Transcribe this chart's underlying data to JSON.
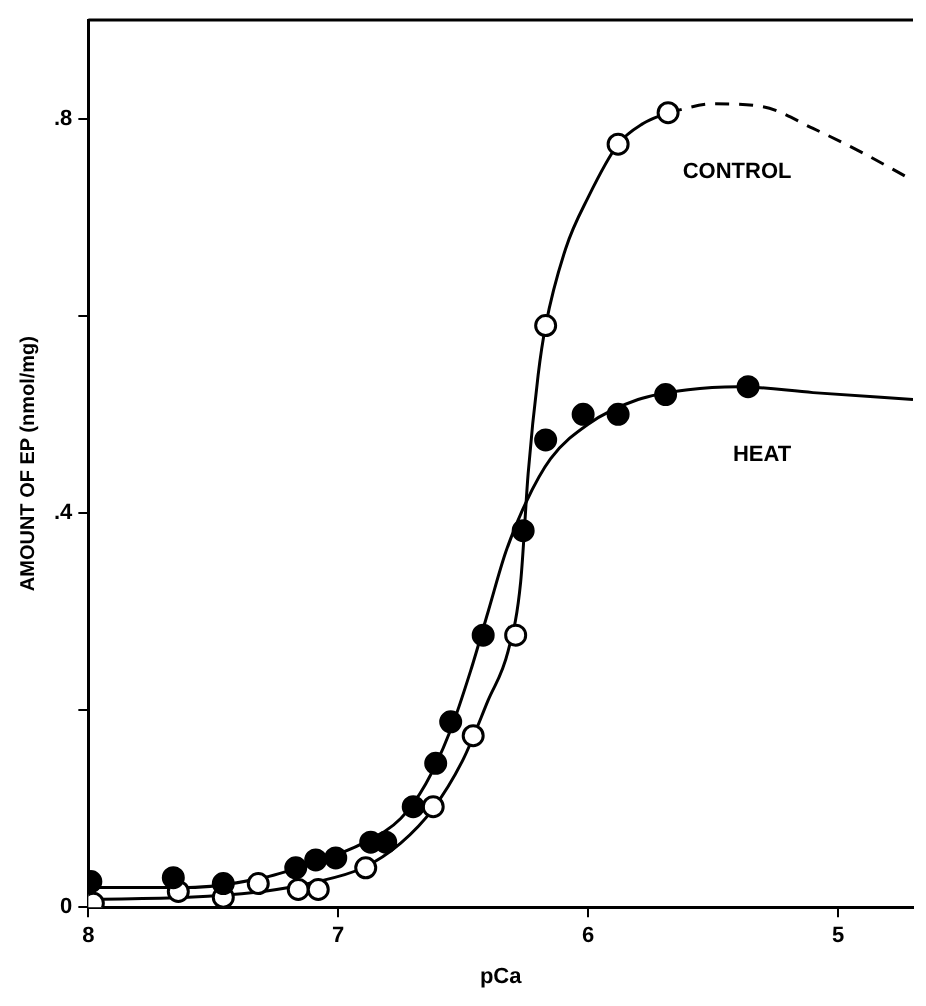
{
  "chart_data": {
    "type": "scatter",
    "xlabel": "pCa",
    "ylabel": "AMOUNT OF EP (nmol/mg)",
    "xlim": [
      8,
      4.7
    ],
    "xticks": [
      8,
      7,
      6,
      5
    ],
    "ylim": [
      0,
      0.9
    ],
    "yticks": [
      0,
      {
        "value": 0.2,
        "label": null
      },
      {
        "value": 0.4,
        "label": ".4"
      },
      {
        "value": 0.6,
        "label": null
      },
      {
        "value": 0.8,
        "label": ".8"
      }
    ],
    "grid": false,
    "legend": false,
    "marker": "circle",
    "series": [
      {
        "type": "line",
        "name": "HEAT",
        "marker": "none",
        "line_style": "solid",
        "color": "#000000",
        "x": [
          8,
          7.6,
          7.3,
          7.1,
          6.9,
          6.75,
          6.65,
          6.55,
          6.47,
          6.4,
          6.33,
          6.25,
          6.15,
          6.0,
          5.8,
          5.6,
          5.4,
          5.1,
          4.7
        ],
        "values": [
          0.02,
          0.02,
          0.03,
          0.045,
          0.065,
          0.09,
          0.125,
          0.18,
          0.24,
          0.3,
          0.36,
          0.41,
          0.455,
          0.49,
          0.515,
          0.525,
          0.528,
          0.522,
          0.515
        ]
      },
      {
        "type": "line",
        "marker": "none",
        "line_style": "solid",
        "color": "#000000",
        "x": [
          8,
          7.6,
          7.3,
          7.1,
          6.9,
          6.75,
          6.62,
          6.5,
          6.4,
          6.32,
          6.27,
          6.24,
          6.2,
          6.17,
          6.09,
          6.0,
          5.88,
          5.78,
          5.68
        ],
        "values": [
          0.008,
          0.01,
          0.016,
          0.025,
          0.04,
          0.065,
          0.1,
          0.15,
          0.21,
          0.26,
          0.33,
          0.44,
          0.54,
          0.59,
          0.668,
          0.72,
          0.774,
          0.795,
          0.806
        ]
      },
      {
        "type": "line",
        "name": "CONTROL",
        "marker": "none",
        "line_style": "dashed",
        "color": "#000000",
        "x": [
          5.68,
          5.5,
          5.3,
          5.1,
          4.9,
          4.72
        ],
        "values": [
          0.806,
          0.815,
          0.812,
          0.79,
          0.765,
          0.74
        ]
      },
      {
        "color": "#000000",
        "x": [
          7.99,
          7.66,
          7.46,
          7.17,
          7.09,
          7.01,
          6.87,
          6.81,
          6.7,
          6.61,
          6.55,
          6.42,
          6.26,
          6.17,
          6.02,
          5.88,
          5.69,
          5.36
        ],
        "values": [
          0.026,
          0.03,
          0.024,
          0.04,
          0.048,
          0.05,
          0.066,
          0.066,
          0.102,
          0.146,
          0.188,
          0.276,
          0.382,
          0.474,
          0.5,
          0.5,
          0.52,
          0.528
        ]
      },
      {
        "color": "#ffffff",
        "x": [
          7.98,
          7.64,
          7.46,
          7.32,
          7.16,
          7.08,
          6.89,
          6.62,
          6.46,
          6.29,
          6.17,
          5.88,
          5.68
        ],
        "values": [
          0.004,
          0.016,
          0.01,
          0.024,
          0.018,
          0.018,
          0.04,
          0.102,
          0.174,
          0.276,
          0.59,
          0.774,
          0.806
        ]
      }
    ]
  }
}
